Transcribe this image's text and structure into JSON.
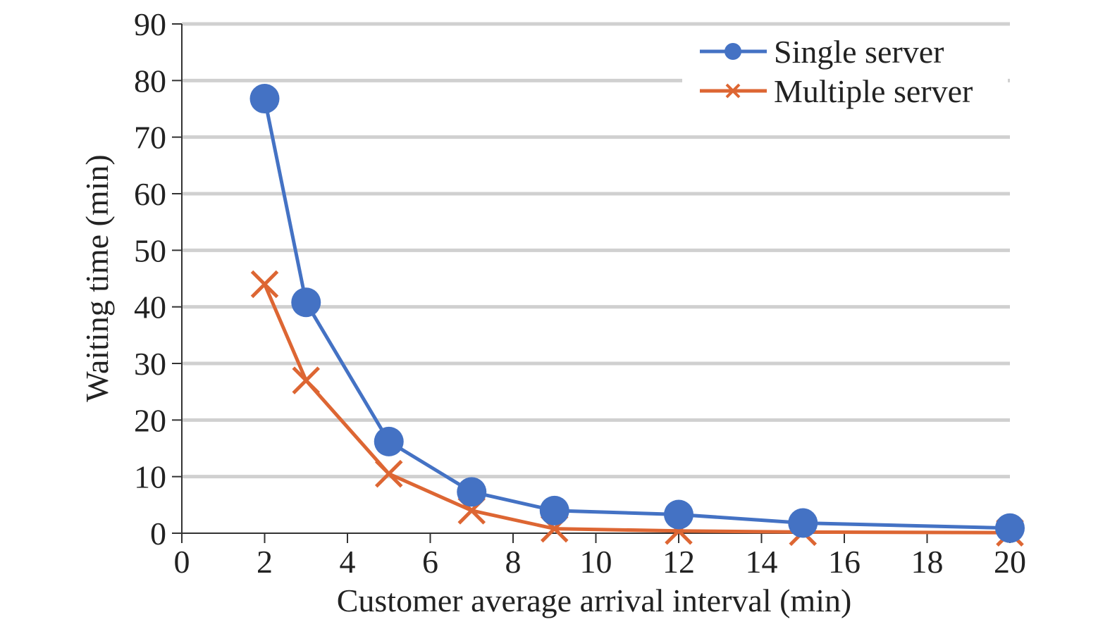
{
  "chart_data": {
    "type": "line",
    "title": "",
    "xlabel": "Customer average arrival interval (min)",
    "ylabel": "Waiting time (min)",
    "xlim": [
      0,
      20
    ],
    "ylim": [
      0,
      90
    ],
    "x_ticks": [
      "0",
      "2",
      "4",
      "6",
      "8",
      "10",
      "12",
      "14",
      "16",
      "18",
      "20"
    ],
    "y_ticks": [
      "0",
      "10",
      "20",
      "30",
      "40",
      "50",
      "60",
      "70",
      "80",
      "90"
    ],
    "grid": "horizontal",
    "legend_position": "top-right",
    "series": [
      {
        "name": "Single server",
        "color": "#4472c4",
        "marker": "circle",
        "x": [
          2,
          3,
          5,
          7,
          9,
          12,
          15,
          20
        ],
        "y": [
          76.8,
          40.8,
          16.2,
          7.3,
          4.0,
          3.3,
          1.8,
          0.9
        ]
      },
      {
        "name": "Multiple server",
        "color": "#dd6633",
        "marker": "x",
        "x": [
          2,
          3,
          5,
          7,
          9,
          12,
          15,
          20
        ],
        "y": [
          44.0,
          27.0,
          10.5,
          4.0,
          0.8,
          0.4,
          0.2,
          0.1
        ]
      }
    ]
  }
}
